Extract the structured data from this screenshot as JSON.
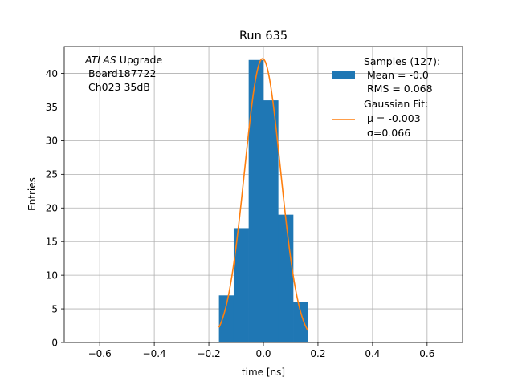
{
  "chart_data": {
    "type": "bar",
    "title": "Run 635",
    "xlabel": "time [ns]",
    "ylabel": "Entries",
    "xlim": [
      -0.73,
      0.73
    ],
    "ylim": [
      0,
      44
    ],
    "xticks": [
      -0.6,
      -0.4,
      -0.2,
      0.0,
      0.2,
      0.4,
      0.6
    ],
    "xtick_labels": [
      "−0.6",
      "−0.4",
      "−0.2",
      "0.0",
      "0.2",
      "0.4",
      "0.6"
    ],
    "yticks": [
      0,
      5,
      10,
      15,
      20,
      25,
      30,
      35,
      40
    ],
    "ytick_labels": [
      "0",
      "5",
      "10",
      "15",
      "20",
      "25",
      "30",
      "35",
      "40"
    ],
    "grid": true,
    "legend_position": "top-right",
    "annotation": {
      "line1_italic": "ATLAS",
      "line1_rest": " Upgrade",
      "line2": " Board187722",
      "line3": " Ch023 35dB"
    },
    "histogram": {
      "name": "Samples (127):",
      "name_line2": " Mean = -0.0",
      "name_line3": " RMS = 0.068",
      "color": "#1f77b4",
      "bin_edges": [
        -0.163,
        -0.109,
        -0.054,
        0.0,
        0.054,
        0.109,
        0.163
      ],
      "counts": [
        7,
        17,
        42,
        36,
        19,
        6
      ]
    },
    "fit": {
      "name": "Gaussian Fit:",
      "mu_label": " μ = -0.003",
      "sigma_label": " σ=0.066",
      "color": "#ff7f0e",
      "mu": -0.003,
      "sigma": 0.066,
      "amplitude": 42.2,
      "x_range": [
        -0.163,
        0.163
      ]
    }
  }
}
